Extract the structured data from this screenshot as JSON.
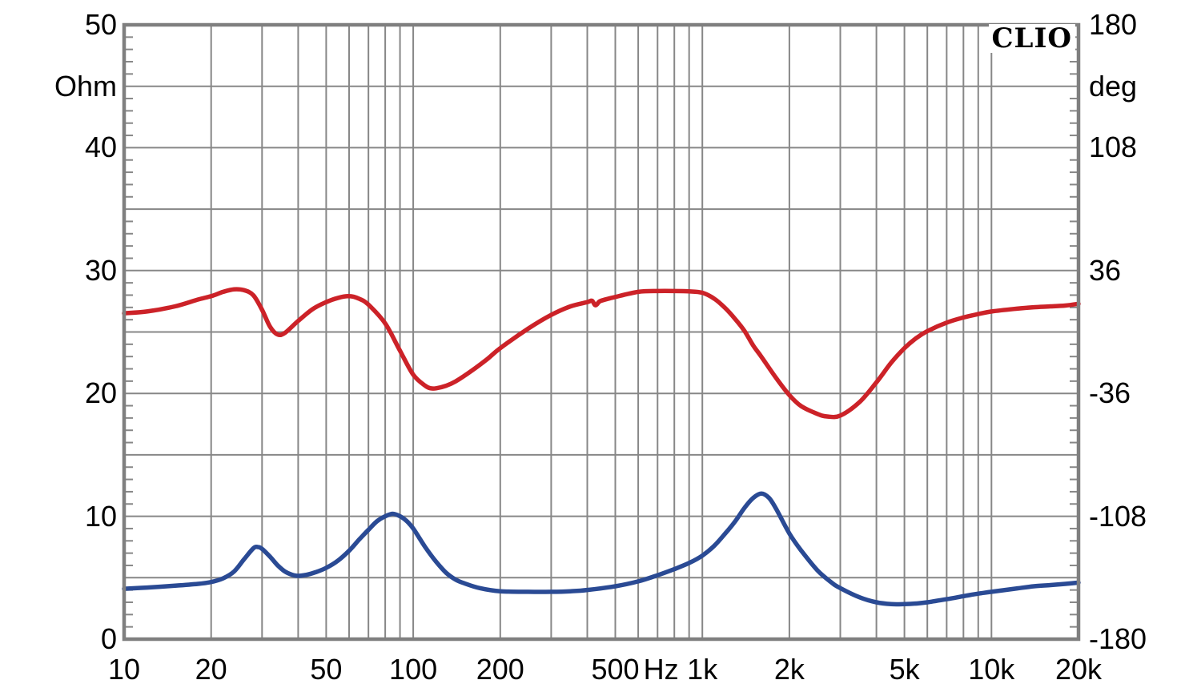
{
  "chart_data": {
    "type": "line",
    "title": "",
    "branding": "CLIO",
    "grid": true,
    "legend": "none",
    "colors": {
      "red": "#cc2228",
      "blue": "#2a4a94",
      "grid": "#878787",
      "frame": "#7f7f7f",
      "text": "#000000"
    },
    "x_axis": {
      "unit": "Hz",
      "scale": "log",
      "min": 10,
      "max": 20000,
      "tick_labels": [
        {
          "text": "10",
          "f": 10
        },
        {
          "text": "20",
          "f": 20
        },
        {
          "text": "50",
          "f": 50
        },
        {
          "text": "100",
          "f": 100
        },
        {
          "text": "200",
          "f": 200
        },
        {
          "text": "500",
          "f": 500
        },
        {
          "text": "Hz",
          "f": 720
        },
        {
          "text": "1k",
          "f": 1000
        },
        {
          "text": "2k",
          "f": 2000
        },
        {
          "text": "5k",
          "f": 5000
        },
        {
          "text": "10k",
          "f": 10000
        },
        {
          "text": "20k",
          "f": 20000
        }
      ]
    },
    "y_left_axis": {
      "unit": "Ohm",
      "min": 0,
      "max": 50,
      "gridline_step": 5,
      "minor_tick_step": 1,
      "tick_labels": [
        {
          "text": "50",
          "v": 50
        },
        {
          "text": "Ohm",
          "v": 45
        },
        {
          "text": "40",
          "v": 40
        },
        {
          "text": "30",
          "v": 30
        },
        {
          "text": "20",
          "v": 20
        },
        {
          "text": "10",
          "v": 10
        },
        {
          "text": "0",
          "v": 0
        }
      ]
    },
    "y_right_axis": {
      "unit": "deg",
      "min": -180,
      "max": 180,
      "minor_tick_step": 7.2,
      "tick_labels": [
        {
          "text": "180",
          "v": 50
        },
        {
          "text": "deg",
          "v": 45
        },
        {
          "text": "108",
          "v": 40
        },
        {
          "text": "36",
          "v": 30
        },
        {
          "text": "-36",
          "v": 20
        },
        {
          "text": "-108",
          "v": 10
        },
        {
          "text": "-180",
          "v": 0
        }
      ]
    },
    "series": [
      {
        "name": "impedance-magnitude",
        "axis": "left",
        "unit": "Ohm",
        "color_key": "blue",
        "points": [
          [
            10,
            4.1
          ],
          [
            12,
            4.2
          ],
          [
            15,
            4.35
          ],
          [
            18,
            4.5
          ],
          [
            20,
            4.65
          ],
          [
            22,
            4.95
          ],
          [
            24,
            5.5
          ],
          [
            26,
            6.5
          ],
          [
            28,
            7.4
          ],
          [
            29,
            7.5
          ],
          [
            30,
            7.35
          ],
          [
            32,
            6.7
          ],
          [
            34,
            6.0
          ],
          [
            36,
            5.5
          ],
          [
            38,
            5.25
          ],
          [
            40,
            5.15
          ],
          [
            43,
            5.25
          ],
          [
            46,
            5.45
          ],
          [
            50,
            5.8
          ],
          [
            55,
            6.4
          ],
          [
            60,
            7.2
          ],
          [
            65,
            8.1
          ],
          [
            70,
            8.9
          ],
          [
            75,
            9.6
          ],
          [
            80,
            10.0
          ],
          [
            85,
            10.2
          ],
          [
            90,
            10.0
          ],
          [
            95,
            9.6
          ],
          [
            100,
            9.0
          ],
          [
            110,
            7.5
          ],
          [
            120,
            6.3
          ],
          [
            130,
            5.4
          ],
          [
            140,
            4.85
          ],
          [
            150,
            4.55
          ],
          [
            170,
            4.15
          ],
          [
            200,
            3.9
          ],
          [
            250,
            3.85
          ],
          [
            300,
            3.85
          ],
          [
            350,
            3.9
          ],
          [
            400,
            4.0
          ],
          [
            500,
            4.3
          ],
          [
            600,
            4.7
          ],
          [
            700,
            5.2
          ],
          [
            800,
            5.7
          ],
          [
            900,
            6.2
          ],
          [
            1000,
            6.8
          ],
          [
            1100,
            7.6
          ],
          [
            1200,
            8.6
          ],
          [
            1300,
            9.6
          ],
          [
            1400,
            10.7
          ],
          [
            1500,
            11.5
          ],
          [
            1600,
            11.85
          ],
          [
            1700,
            11.5
          ],
          [
            1800,
            10.6
          ],
          [
            2000,
            8.6
          ],
          [
            2200,
            7.2
          ],
          [
            2500,
            5.6
          ],
          [
            2800,
            4.6
          ],
          [
            3000,
            4.15
          ],
          [
            3500,
            3.4
          ],
          [
            4000,
            3.0
          ],
          [
            4500,
            2.85
          ],
          [
            5000,
            2.85
          ],
          [
            5500,
            2.9
          ],
          [
            6000,
            3.0
          ],
          [
            7000,
            3.25
          ],
          [
            8000,
            3.5
          ],
          [
            9000,
            3.7
          ],
          [
            10000,
            3.85
          ],
          [
            12000,
            4.1
          ],
          [
            14000,
            4.3
          ],
          [
            16000,
            4.4
          ],
          [
            18000,
            4.5
          ],
          [
            20000,
            4.6
          ]
        ]
      },
      {
        "name": "impedance-phase",
        "axis": "right",
        "unit": "deg",
        "color_key": "red",
        "points": [
          [
            10,
            11
          ],
          [
            12,
            12
          ],
          [
            15,
            15
          ],
          [
            18,
            19
          ],
          [
            20,
            21
          ],
          [
            22,
            23.5
          ],
          [
            24,
            25
          ],
          [
            26,
            24.5
          ],
          [
            28,
            21.5
          ],
          [
            30,
            13
          ],
          [
            32,
            3
          ],
          [
            34,
            -1.5
          ],
          [
            36,
            -0.5
          ],
          [
            40,
            6.5
          ],
          [
            45,
            13.5
          ],
          [
            50,
            17.5
          ],
          [
            55,
            20
          ],
          [
            60,
            21
          ],
          [
            65,
            19.5
          ],
          [
            70,
            16
          ],
          [
            80,
            5
          ],
          [
            90,
            -11
          ],
          [
            100,
            -25
          ],
          [
            110,
            -31.5
          ],
          [
            115,
            -33
          ],
          [
            120,
            -33
          ],
          [
            130,
            -31.5
          ],
          [
            140,
            -29
          ],
          [
            160,
            -22.5
          ],
          [
            180,
            -16
          ],
          [
            200,
            -9.5
          ],
          [
            250,
            2
          ],
          [
            300,
            10
          ],
          [
            350,
            15
          ],
          [
            400,
            17.5
          ],
          [
            415,
            18.3
          ],
          [
            425,
            15.8
          ],
          [
            432,
            16.2
          ],
          [
            445,
            18.2
          ],
          [
            500,
            20.5
          ],
          [
            600,
            23.5
          ],
          [
            700,
            24
          ],
          [
            800,
            24
          ],
          [
            900,
            23.8
          ],
          [
            1000,
            23
          ],
          [
            1100,
            19.5
          ],
          [
            1200,
            14
          ],
          [
            1300,
            7.5
          ],
          [
            1400,
            0.5
          ],
          [
            1500,
            -8
          ],
          [
            1600,
            -14.5
          ],
          [
            1800,
            -27
          ],
          [
            2000,
            -37
          ],
          [
            2200,
            -43.5
          ],
          [
            2500,
            -48
          ],
          [
            2700,
            -49.5
          ],
          [
            3000,
            -49
          ],
          [
            3500,
            -41
          ],
          [
            4000,
            -29.5
          ],
          [
            4500,
            -18
          ],
          [
            5000,
            -9.5
          ],
          [
            5500,
            -3.5
          ],
          [
            6000,
            0.5
          ],
          [
            7000,
            5.5
          ],
          [
            8000,
            8.5
          ],
          [
            9000,
            10.5
          ],
          [
            10000,
            12
          ],
          [
            12000,
            13.5
          ],
          [
            14000,
            14.5
          ],
          [
            16000,
            15
          ],
          [
            18000,
            15.5
          ],
          [
            20000,
            16.5
          ]
        ]
      }
    ]
  }
}
